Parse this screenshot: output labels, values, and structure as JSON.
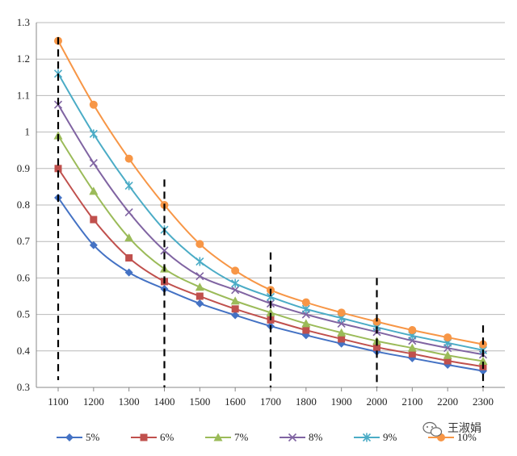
{
  "chart_data": {
    "type": "line",
    "title": "",
    "xlabel": "",
    "ylabel": "",
    "x": [
      1100,
      1200,
      1300,
      1400,
      1500,
      1600,
      1700,
      1800,
      1900,
      2000,
      2100,
      2200,
      2300
    ],
    "ylim": [
      0.3,
      1.3
    ],
    "yticks": [
      "0.3",
      "0.4",
      "0.5",
      "0.6",
      "0.7",
      "0.8",
      "0.9",
      "1",
      "1.1",
      "1.2",
      "1.3"
    ],
    "grid": true,
    "legend_position": "bottom",
    "reference_lines": [
      {
        "x": 1100,
        "y_range": [
          0.32,
          1.26
        ],
        "style": "dashed"
      },
      {
        "x": 1400,
        "y_range": [
          0.3,
          0.87
        ],
        "style": "dashed"
      },
      {
        "x": 1700,
        "y_range": [
          0.3,
          0.67
        ],
        "style": "dashed"
      },
      {
        "x": 2000,
        "y_range": [
          0.3,
          0.6
        ],
        "style": "dashed"
      },
      {
        "x": 2300,
        "y_range": [
          0.3,
          0.47
        ],
        "style": "dashed"
      }
    ],
    "series": [
      {
        "name": "5%",
        "color": "#4472C4",
        "marker": "diamond",
        "values": [
          0.82,
          0.69,
          0.615,
          0.57,
          0.53,
          0.498,
          0.468,
          0.443,
          0.42,
          0.398,
          0.38,
          0.362,
          0.345
        ]
      },
      {
        "name": "6%",
        "color": "#C0504D",
        "marker": "square",
        "values": [
          0.9,
          0.76,
          0.655,
          0.59,
          0.55,
          0.515,
          0.485,
          0.457,
          0.433,
          0.41,
          0.392,
          0.373,
          0.357
        ]
      },
      {
        "name": "7%",
        "color": "#9BBB59",
        "marker": "triangle",
        "values": [
          0.99,
          0.838,
          0.71,
          0.625,
          0.575,
          0.537,
          0.505,
          0.475,
          0.45,
          0.427,
          0.408,
          0.388,
          0.372
        ]
      },
      {
        "name": "8%",
        "color": "#8064A2",
        "marker": "x",
        "values": [
          1.075,
          0.915,
          0.78,
          0.675,
          0.605,
          0.567,
          0.53,
          0.5,
          0.475,
          0.452,
          0.428,
          0.408,
          0.39
        ]
      },
      {
        "name": "9%",
        "color": "#4BACC6",
        "marker": "star",
        "values": [
          1.16,
          0.995,
          0.853,
          0.732,
          0.645,
          0.585,
          0.548,
          0.515,
          0.49,
          0.465,
          0.442,
          0.422,
          0.402
        ]
      },
      {
        "name": "10%",
        "color": "#F79646",
        "marker": "circle",
        "values": [
          1.25,
          1.075,
          0.927,
          0.8,
          0.693,
          0.62,
          0.567,
          0.533,
          0.505,
          0.48,
          0.457,
          0.437,
          0.418
        ]
      }
    ]
  },
  "watermark": {
    "text": "王淑娟",
    "icon": "wechat-icon"
  }
}
